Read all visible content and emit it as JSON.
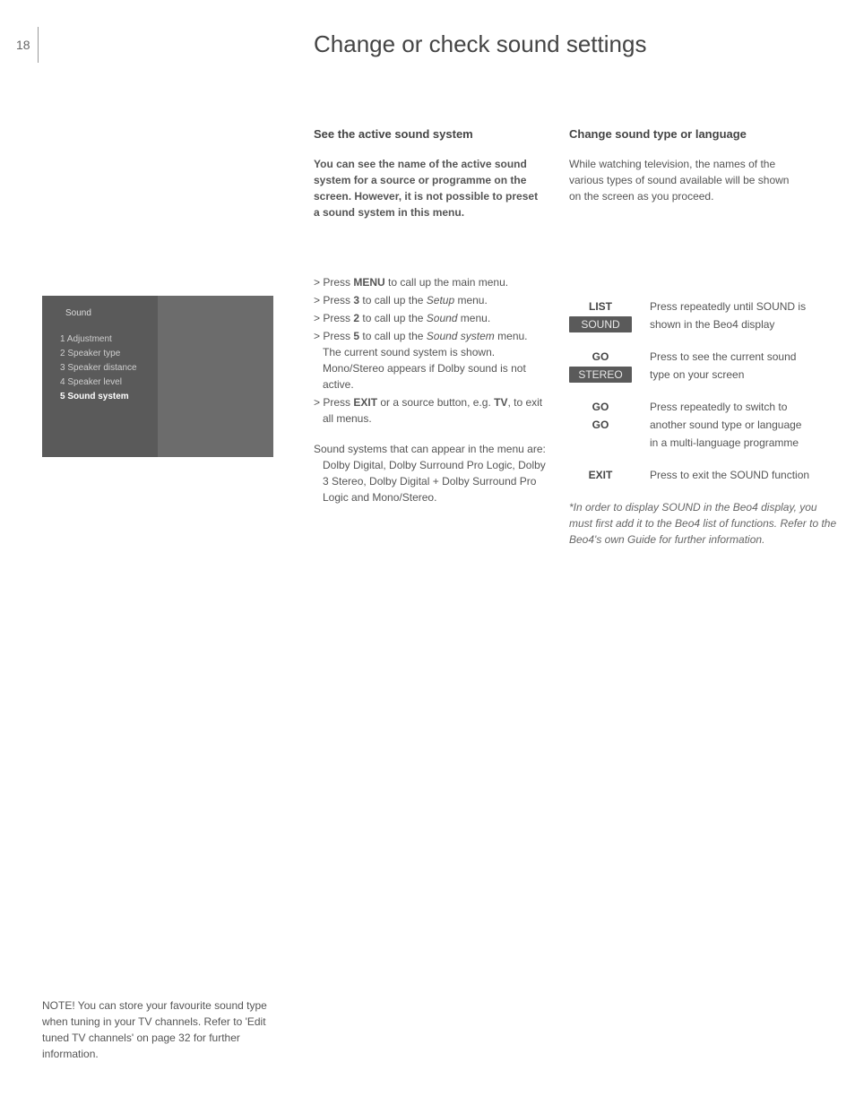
{
  "page": {
    "number": "18",
    "title": "Change or check sound settings"
  },
  "leftCol": {
    "heading": "See the active sound system",
    "intro": "You can see the name of the active sound system for a source or programme on the screen. However, it is not possible to preset a sound system in this menu.",
    "steps": {
      "s1a": "> Press ",
      "s1b": "MENU",
      "s1c": " to call up the main menu.",
      "s2a": "> Press ",
      "s2b": "3",
      "s2c": " to call up the ",
      "s2d": "Setup",
      "s2e": " menu.",
      "s3a": "> Press ",
      "s3b": "2",
      "s3c": " to call up the ",
      "s3d": "Sound",
      "s3e": " menu.",
      "s4a": "> Press ",
      "s4b": "5",
      "s4c": " to call up the ",
      "s4d": "Sound system",
      "s4e": " menu. The current sound system is shown. Mono/Stereo appears if Dolby sound is not active.",
      "s5a": "> Press ",
      "s5b": "EXIT",
      "s5c": " or a source button, e.g. ",
      "s5d": "TV",
      "s5e": ", to exit all menus."
    },
    "after": "Sound systems that can appear in the menu are: Dolby Digital, Dolby Surround Pro Logic, Dolby 3 Stereo, Dolby Digital + Dolby Surround Pro Logic and Mono/Stereo."
  },
  "rightCol": {
    "heading": "Change sound type or language",
    "intro": "While watching television, the names of the various types of sound available will be shown on the screen as you proceed."
  },
  "remote": {
    "r1": {
      "btn": "LIST",
      "desc": "Press repeatedly until SOUND is"
    },
    "r2": {
      "btn": "SOUND",
      "desc": "shown in the Beo4 display"
    },
    "r3": {
      "btn": "GO",
      "desc": "Press to see the current sound"
    },
    "r4": {
      "btn": "STEREO",
      "desc": "type on your screen"
    },
    "r5": {
      "btn": "GO",
      "desc": "Press repeatedly to switch to"
    },
    "r6": {
      "btn": "GO",
      "desc": "another sound type or language"
    },
    "r7": {
      "btn": "",
      "desc": "in a multi-language programme"
    },
    "r8": {
      "btn": "EXIT",
      "desc": "Press to exit the SOUND function"
    }
  },
  "footnote": "*In order to display SOUND in the Beo4 display, you must first add it to the Beo4 list of functions. Refer to the Beo4's own Guide for further information.",
  "menuPanel": {
    "title": "Sound",
    "items": {
      "i1": "1  Adjustment",
      "i2": "2  Speaker type",
      "i3": "3  Speaker distance",
      "i4": "4  Speaker level",
      "i5": "5  Sound system"
    }
  },
  "bottomNote": "NOTE! You can store your favourite sound type when tuning in your TV channels. Refer to 'Edit tuned TV channels' on page 32 for further information.",
  "colors": {
    "bodyText": "#555555",
    "headingText": "#444444",
    "panelBgLeft": "#5a5a5a",
    "panelBgRight": "#6c6c6c",
    "panelText": "#cfcfcf",
    "background": "#ffffff"
  },
  "fonts": {
    "title_pt": 26,
    "heading_pt": 13,
    "body_pt": 12,
    "panel_pt": 10
  }
}
